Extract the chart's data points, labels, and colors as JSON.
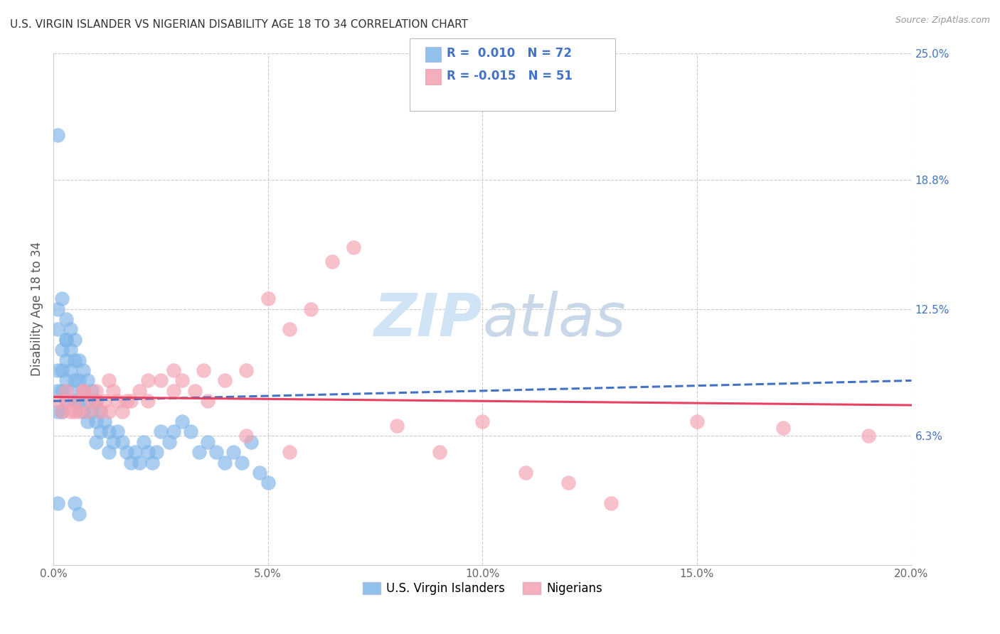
{
  "title": "U.S. VIRGIN ISLANDER VS NIGERIAN DISABILITY AGE 18 TO 34 CORRELATION CHART",
  "source": "Source: ZipAtlas.com",
  "ylabel": "Disability Age 18 to 34",
  "xlim": [
    0.0,
    0.2
  ],
  "ylim": [
    0.0,
    0.25
  ],
  "xtick_labels": [
    "0.0%",
    "",
    "5.0%",
    "",
    "10.0%",
    "",
    "15.0%",
    "",
    "20.0%"
  ],
  "xtick_vals": [
    0.0,
    0.025,
    0.05,
    0.075,
    0.1,
    0.125,
    0.15,
    0.175,
    0.2
  ],
  "xtick_display_labels": [
    "0.0%",
    "5.0%",
    "10.0%",
    "15.0%",
    "20.0%"
  ],
  "xtick_display_vals": [
    0.0,
    0.05,
    0.1,
    0.15,
    0.2
  ],
  "ytick_right_labels": [
    "25.0%",
    "18.8%",
    "12.5%",
    "6.3%"
  ],
  "ytick_right_vals": [
    0.25,
    0.188,
    0.125,
    0.063
  ],
  "blue_R": 0.01,
  "blue_N": 72,
  "pink_R": -0.015,
  "pink_N": 51,
  "blue_color": "#7EB5E8",
  "pink_color": "#F4A0B0",
  "blue_line_color": "#4472C4",
  "pink_line_color": "#E84060",
  "grid_color": "#CCCCCC",
  "title_color": "#333333",
  "axis_label_color": "#4472C4",
  "watermark_color": "#D0E4F5",
  "legend_label1": "U.S. Virgin Islanders",
  "legend_label2": "Nigerians",
  "blue_x": [
    0.001,
    0.001,
    0.001,
    0.002,
    0.002,
    0.002,
    0.002,
    0.003,
    0.003,
    0.003,
    0.003,
    0.004,
    0.004,
    0.004,
    0.005,
    0.005,
    0.005,
    0.005,
    0.006,
    0.006,
    0.006,
    0.007,
    0.007,
    0.007,
    0.008,
    0.008,
    0.008,
    0.009,
    0.009,
    0.01,
    0.01,
    0.01,
    0.011,
    0.011,
    0.012,
    0.013,
    0.013,
    0.014,
    0.015,
    0.016,
    0.017,
    0.018,
    0.019,
    0.02,
    0.021,
    0.022,
    0.023,
    0.024,
    0.025,
    0.027,
    0.028,
    0.03,
    0.032,
    0.034,
    0.036,
    0.038,
    0.04,
    0.042,
    0.044,
    0.046,
    0.048,
    0.05,
    0.001,
    0.001,
    0.002,
    0.003,
    0.003,
    0.004,
    0.005,
    0.006,
    0.001,
    0.001
  ],
  "blue_y": [
    0.095,
    0.085,
    0.075,
    0.105,
    0.095,
    0.085,
    0.075,
    0.11,
    0.1,
    0.09,
    0.08,
    0.105,
    0.095,
    0.085,
    0.11,
    0.1,
    0.09,
    0.08,
    0.1,
    0.09,
    0.08,
    0.095,
    0.085,
    0.075,
    0.09,
    0.08,
    0.07,
    0.085,
    0.075,
    0.08,
    0.07,
    0.06,
    0.075,
    0.065,
    0.07,
    0.065,
    0.055,
    0.06,
    0.065,
    0.06,
    0.055,
    0.05,
    0.055,
    0.05,
    0.06,
    0.055,
    0.05,
    0.055,
    0.065,
    0.06,
    0.065,
    0.07,
    0.065,
    0.055,
    0.06,
    0.055,
    0.05,
    0.055,
    0.05,
    0.06,
    0.045,
    0.04,
    0.125,
    0.115,
    0.13,
    0.12,
    0.11,
    0.115,
    0.03,
    0.025,
    0.21,
    0.03
  ],
  "pink_x": [
    0.001,
    0.002,
    0.003,
    0.004,
    0.005,
    0.006,
    0.007,
    0.008,
    0.009,
    0.01,
    0.011,
    0.012,
    0.013,
    0.014,
    0.015,
    0.016,
    0.018,
    0.02,
    0.022,
    0.025,
    0.028,
    0.03,
    0.033,
    0.036,
    0.04,
    0.045,
    0.05,
    0.055,
    0.06,
    0.065,
    0.07,
    0.08,
    0.09,
    0.1,
    0.11,
    0.12,
    0.13,
    0.15,
    0.17,
    0.003,
    0.005,
    0.007,
    0.01,
    0.013,
    0.017,
    0.022,
    0.028,
    0.035,
    0.045,
    0.055,
    0.19
  ],
  "pink_y": [
    0.08,
    0.075,
    0.085,
    0.075,
    0.08,
    0.075,
    0.085,
    0.075,
    0.08,
    0.085,
    0.075,
    0.08,
    0.075,
    0.085,
    0.08,
    0.075,
    0.08,
    0.085,
    0.08,
    0.09,
    0.085,
    0.09,
    0.085,
    0.08,
    0.09,
    0.095,
    0.13,
    0.115,
    0.125,
    0.148,
    0.155,
    0.068,
    0.055,
    0.07,
    0.045,
    0.04,
    0.03,
    0.07,
    0.067,
    0.08,
    0.075,
    0.085,
    0.08,
    0.09,
    0.08,
    0.09,
    0.095,
    0.095,
    0.063,
    0.055,
    0.063
  ],
  "blue_trend_start_y": 0.08,
  "blue_trend_end_y": 0.09,
  "pink_trend_start_y": 0.082,
  "pink_trend_end_y": 0.078
}
